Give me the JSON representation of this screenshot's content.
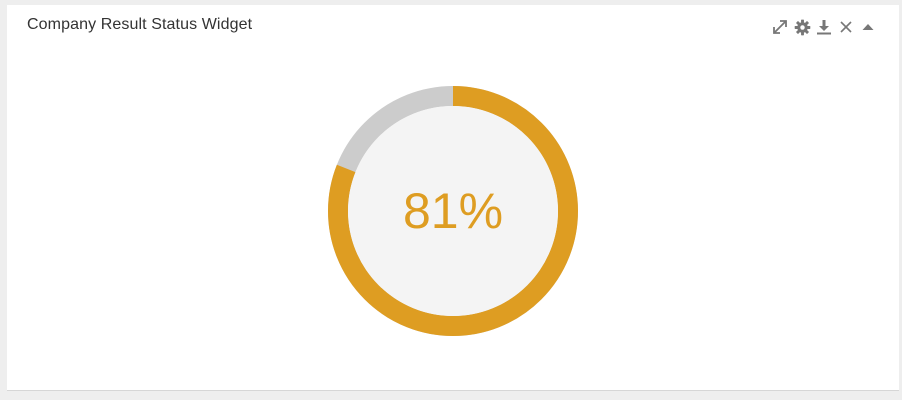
{
  "widget": {
    "title": "Company Result Status Widget",
    "toolbar": {
      "icons": [
        "expand-icon",
        "gear-icon",
        "download-icon",
        "close-icon",
        "collapse-icon"
      ]
    }
  },
  "gauge": {
    "value_label": "81%",
    "fraction": 0.81,
    "colors": {
      "fill": "#de9d22",
      "track": "#cccccc",
      "center": "#f4f4f4"
    }
  }
}
